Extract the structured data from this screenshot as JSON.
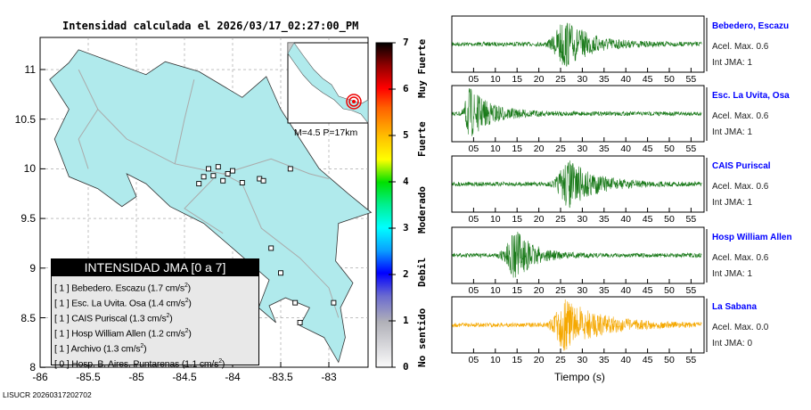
{
  "title": "Intensidad calculada el 2026/03/17_02:27:00_PM",
  "map": {
    "lon_ticks": [
      "-86",
      "-85.5",
      "-85",
      "-84.5",
      "-84",
      "-83.5",
      "-83"
    ],
    "lat_ticks": [
      "11",
      "10.5",
      "10",
      "9.5",
      "9",
      "8.5",
      "8"
    ],
    "land_color": "#b0eaec",
    "inset_text": "M=4.5 P=17km"
  },
  "legend": {
    "title": "INTENSIDAD JMA [0 a 7]",
    "rows": [
      {
        "int": "[ 1 ]",
        "name": "Bebedero. Escazu",
        "val": "(1.7 cm/s",
        "sup": "2",
        ")": ")"
      },
      {
        "int": "[ 1 ]",
        "name": "Esc. La Uvita. Osa",
        "val": "(1.4 cm/s",
        "sup": "2"
      },
      {
        "int": "[ 1 ]",
        "name": "CAIS Puriscal",
        "val": "(1.3 cm/s",
        "sup": "2"
      },
      {
        "int": "[ 1 ]",
        "name": "Hosp William Allen",
        "val": "(1.2 cm/s",
        "sup": "2"
      },
      {
        "int": "[ 1 ]",
        "name": "Archivo",
        "val": "(1.3 cm/s",
        "sup": "2"
      },
      {
        "int": "[ 0 ]",
        "name": "Hosp. B. Aires. Puntarenas",
        "val": "(1.1 cm/s",
        "sup": "2"
      }
    ]
  },
  "colorbar": {
    "labels": [
      "0",
      "1",
      "2",
      "3",
      "4",
      "5",
      "6",
      "7"
    ],
    "words": [
      "No sentido",
      "Debil",
      "Moderado",
      "Fuerte",
      "Muy Fuerte"
    ]
  },
  "stations": [
    {
      "name": "Bebedero, Escazu",
      "acel": "Acel. Max. 0.6",
      "int": "Int JMA: 1",
      "color": "#1a7a1a",
      "peak": 26,
      "decay": 6,
      "amp": 0.9
    },
    {
      "name": "Esc. La Uvita, Osa",
      "acel": "Acel. Max. 0.6",
      "int": "Int JMA: 1",
      "color": "#1a7a1a",
      "peak": 4,
      "decay": 5,
      "amp": 0.95
    },
    {
      "name": "CAIS Puriscal",
      "acel": "Acel. Max. 0.6",
      "int": "Int JMA: 1",
      "color": "#1a7a1a",
      "peak": 27,
      "decay": 6,
      "amp": 0.9
    },
    {
      "name": "Hosp William Allen",
      "acel": "Acel. Max. 0.6",
      "int": "Int JMA: 1",
      "color": "#1a7a1a",
      "peak": 15,
      "decay": 4,
      "amp": 0.9
    },
    {
      "name": "La Sabana",
      "acel": "Acel. Max. 0.0",
      "int": "Int JMA: 0",
      "color": "#f5a800",
      "peak": 26,
      "decay": 8,
      "amp": 0.95
    }
  ],
  "time_ticks": [
    "05",
    "10",
    "15",
    "20",
    "25",
    "30",
    "35",
    "40",
    "45",
    "50",
    "55"
  ],
  "xlabel": "Tiempo (s)",
  "footer": "LISUCR 20260317202702"
}
